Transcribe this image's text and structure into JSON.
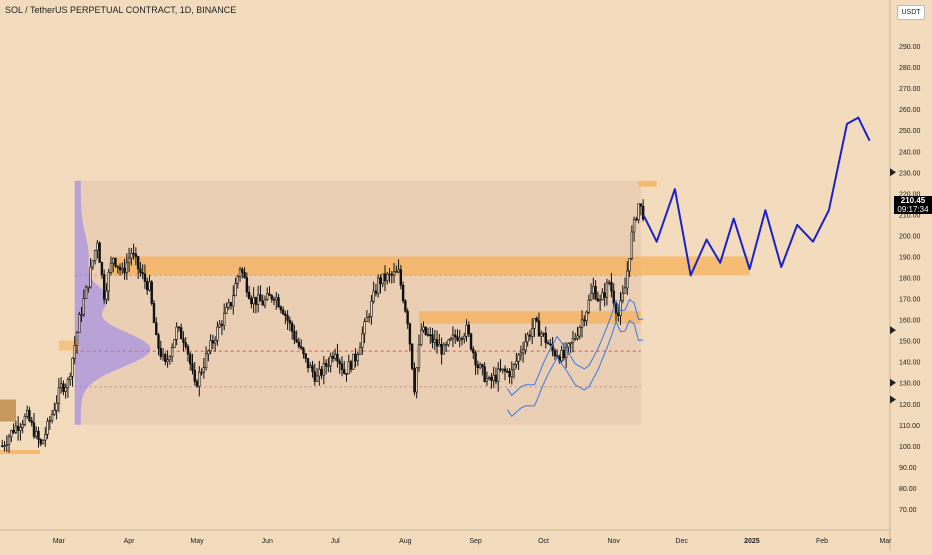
{
  "header": {
    "title": "SOL / TetherUS PERPETUAL CONTRACT, 1D, BINANCE",
    "currency_button": "USDT"
  },
  "price_label": {
    "price": "210.45",
    "countdown": "09:17:34"
  },
  "colors": {
    "background": "#f3dcbd",
    "up": "#1a1a1a",
    "zone": "#f5b25c",
    "profile": "#8e7df0",
    "projection": "#1a22c8",
    "ma": "#3a7be0"
  },
  "chart_data": {
    "type": "candlestick",
    "symbol": "SOL / TetherUS PERPETUAL CONTRACT",
    "interval": "1D",
    "exchange": "BINANCE",
    "last_price": 210.45,
    "ylim": [
      60,
      300
    ],
    "y_ticks": [
      70,
      80,
      90,
      100,
      110,
      120,
      130,
      140,
      150,
      160,
      170,
      180,
      190,
      200,
      210,
      220,
      230,
      240,
      250,
      260,
      270,
      280,
      290
    ],
    "y_tick_labels": [
      "70.00",
      "80.00",
      "90.00",
      "100.00",
      "110.00",
      "120.00",
      "130.00",
      "140.00",
      "150.00",
      "160.00",
      "170.00",
      "180.00",
      "190.00",
      "200.00",
      "210.00",
      "220.00",
      "230.00",
      "240.00",
      "250.00",
      "260.00",
      "270.00",
      "280.00",
      "290.00"
    ],
    "x_tick_labels": [
      "Mar",
      "Apr",
      "May",
      "Jun",
      "Jul",
      "Aug",
      "Sep",
      "Oct",
      "Nov",
      "Dec",
      "2025",
      "Feb",
      "Mar"
    ],
    "x_tick_dates": [
      "2024-03-01",
      "2024-04-01",
      "2024-05-01",
      "2024-06-01",
      "2024-07-01",
      "2024-08-01",
      "2024-09-01",
      "2024-10-01",
      "2024-11-01",
      "2024-12-01",
      "2025-01-01",
      "2025-02-01",
      "2025-03-01"
    ],
    "x_range": [
      "2024-02-04",
      "2025-03-03"
    ],
    "close_path": [
      {
        "date": "2024-02-05",
        "price": 100
      },
      {
        "date": "2024-02-10",
        "price": 108
      },
      {
        "date": "2024-02-16",
        "price": 114
      },
      {
        "date": "2024-02-22",
        "price": 100
      },
      {
        "date": "2024-02-26",
        "price": 112
      },
      {
        "date": "2024-03-02",
        "price": 128
      },
      {
        "date": "2024-03-05",
        "price": 130
      },
      {
        "date": "2024-03-10",
        "price": 160
      },
      {
        "date": "2024-03-14",
        "price": 178
      },
      {
        "date": "2024-03-18",
        "price": 198
      },
      {
        "date": "2024-03-21",
        "price": 172
      },
      {
        "date": "2024-03-25",
        "price": 190
      },
      {
        "date": "2024-03-29",
        "price": 182
      },
      {
        "date": "2024-04-02",
        "price": 192
      },
      {
        "date": "2024-04-06",
        "price": 182
      },
      {
        "date": "2024-04-10",
        "price": 175
      },
      {
        "date": "2024-04-13",
        "price": 150
      },
      {
        "date": "2024-04-17",
        "price": 138
      },
      {
        "date": "2024-04-22",
        "price": 155
      },
      {
        "date": "2024-04-26",
        "price": 150
      },
      {
        "date": "2024-04-30",
        "price": 128
      },
      {
        "date": "2024-05-05",
        "price": 142
      },
      {
        "date": "2024-05-10",
        "price": 155
      },
      {
        "date": "2024-05-16",
        "price": 168
      },
      {
        "date": "2024-05-20",
        "price": 185
      },
      {
        "date": "2024-05-25",
        "price": 170
      },
      {
        "date": "2024-05-30",
        "price": 168
      },
      {
        "date": "2024-06-04",
        "price": 172
      },
      {
        "date": "2024-06-08",
        "price": 165
      },
      {
        "date": "2024-06-13",
        "price": 152
      },
      {
        "date": "2024-06-18",
        "price": 140
      },
      {
        "date": "2024-06-23",
        "price": 132
      },
      {
        "date": "2024-06-28",
        "price": 140
      },
      {
        "date": "2024-07-01",
        "price": 146
      },
      {
        "date": "2024-07-05",
        "price": 135
      },
      {
        "date": "2024-07-10",
        "price": 142
      },
      {
        "date": "2024-07-15",
        "price": 160
      },
      {
        "date": "2024-07-20",
        "price": 178
      },
      {
        "date": "2024-07-24",
        "price": 180
      },
      {
        "date": "2024-07-29",
        "price": 182
      },
      {
        "date": "2024-08-02",
        "price": 160
      },
      {
        "date": "2024-08-05",
        "price": 128
      },
      {
        "date": "2024-08-08",
        "price": 155
      },
      {
        "date": "2024-08-13",
        "price": 150
      },
      {
        "date": "2024-08-18",
        "price": 145
      },
      {
        "date": "2024-08-23",
        "price": 152
      },
      {
        "date": "2024-08-28",
        "price": 155
      },
      {
        "date": "2024-09-02",
        "price": 138
      },
      {
        "date": "2024-09-07",
        "price": 130
      },
      {
        "date": "2024-09-12",
        "price": 135
      },
      {
        "date": "2024-09-17",
        "price": 135
      },
      {
        "date": "2024-09-22",
        "price": 148
      },
      {
        "date": "2024-09-27",
        "price": 158
      },
      {
        "date": "2024-10-01",
        "price": 152
      },
      {
        "date": "2024-10-05",
        "price": 145
      },
      {
        "date": "2024-10-10",
        "price": 142
      },
      {
        "date": "2024-10-15",
        "price": 152
      },
      {
        "date": "2024-10-20",
        "price": 165
      },
      {
        "date": "2024-10-23",
        "price": 175
      },
      {
        "date": "2024-10-26",
        "price": 168
      },
      {
        "date": "2024-10-30",
        "price": 178
      },
      {
        "date": "2024-11-03",
        "price": 162
      },
      {
        "date": "2024-11-06",
        "price": 175
      },
      {
        "date": "2024-11-09",
        "price": 200
      },
      {
        "date": "2024-11-12",
        "price": 215
      },
      {
        "date": "2024-11-14",
        "price": 210.45
      }
    ],
    "zones": [
      {
        "name": "range",
        "from": "2024-03-08",
        "to": "2024-11-13",
        "low": 110,
        "high": 226
      },
      {
        "name": "resistance",
        "from": "2024-03-24",
        "to": "2024-12-31",
        "low": 181,
        "high": 190
      },
      {
        "name": "mid",
        "from": "2024-08-07",
        "to": "2024-11-13",
        "low": 158,
        "high": 164
      }
    ],
    "projection_path": [
      {
        "date": "2024-11-14",
        "price": 210
      },
      {
        "date": "2024-11-20",
        "price": 197
      },
      {
        "date": "2024-11-28",
        "price": 222
      },
      {
        "date": "2024-12-05",
        "price": 181
      },
      {
        "date": "2024-12-12",
        "price": 198
      },
      {
        "date": "2024-12-18",
        "price": 187
      },
      {
        "date": "2024-12-24",
        "price": 208
      },
      {
        "date": "2024-12-31",
        "price": 184
      },
      {
        "date": "2025-01-07",
        "price": 212
      },
      {
        "date": "2025-01-14",
        "price": 185
      },
      {
        "date": "2025-01-21",
        "price": 205
      },
      {
        "date": "2025-01-28",
        "price": 197
      },
      {
        "date": "2025-02-04",
        "price": 212
      },
      {
        "date": "2025-02-12",
        "price": 253
      },
      {
        "date": "2025-02-17",
        "price": 256
      },
      {
        "date": "2025-02-22",
        "price": 245
      }
    ],
    "grid": false,
    "legend": "none"
  }
}
